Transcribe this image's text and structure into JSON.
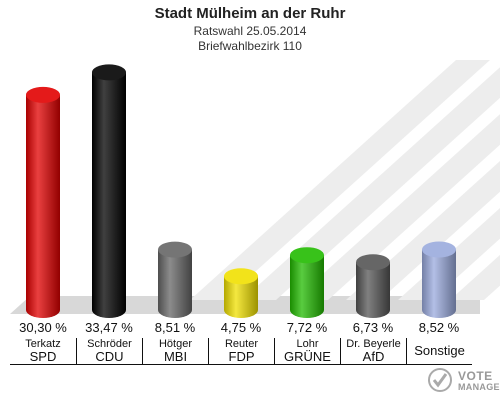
{
  "header": {
    "title": "Stadt Mülheim an der Ruhr",
    "subtitle": "Ratswahl 25.05.2014",
    "district": "Briefwahlbezirk 110"
  },
  "logo": {
    "line1": "VOTE",
    "line2": "MANAGER"
  },
  "chart_data": {
    "type": "bar",
    "title": "Stadt Mülheim an der Ruhr",
    "subtitle": "Ratswahl 25.05.2014 / Briefwahlbezirk 110",
    "categories": [
      "SPD",
      "CDU",
      "MBI",
      "FDP",
      "GRÜNE",
      "AfD",
      "Sonstige"
    ],
    "candidates": [
      "Terkatz",
      "Schröder",
      "Hötger",
      "Reuter",
      "Lohr",
      "Dr. Beyerle",
      ""
    ],
    "values": [
      30.3,
      33.47,
      8.51,
      4.75,
      7.72,
      6.73,
      8.52
    ],
    "value_labels": [
      "30,30 %",
      "33,47 %",
      "8,51 %",
      "4,75 %",
      "7,72 %",
      "6,73 %",
      "8,52 %"
    ],
    "colors": [
      "#e10000",
      "#000000",
      "#666666",
      "#f0e000",
      "#22bb00",
      "#555555",
      "#9aaadd"
    ],
    "unit": "%",
    "grid": false
  }
}
